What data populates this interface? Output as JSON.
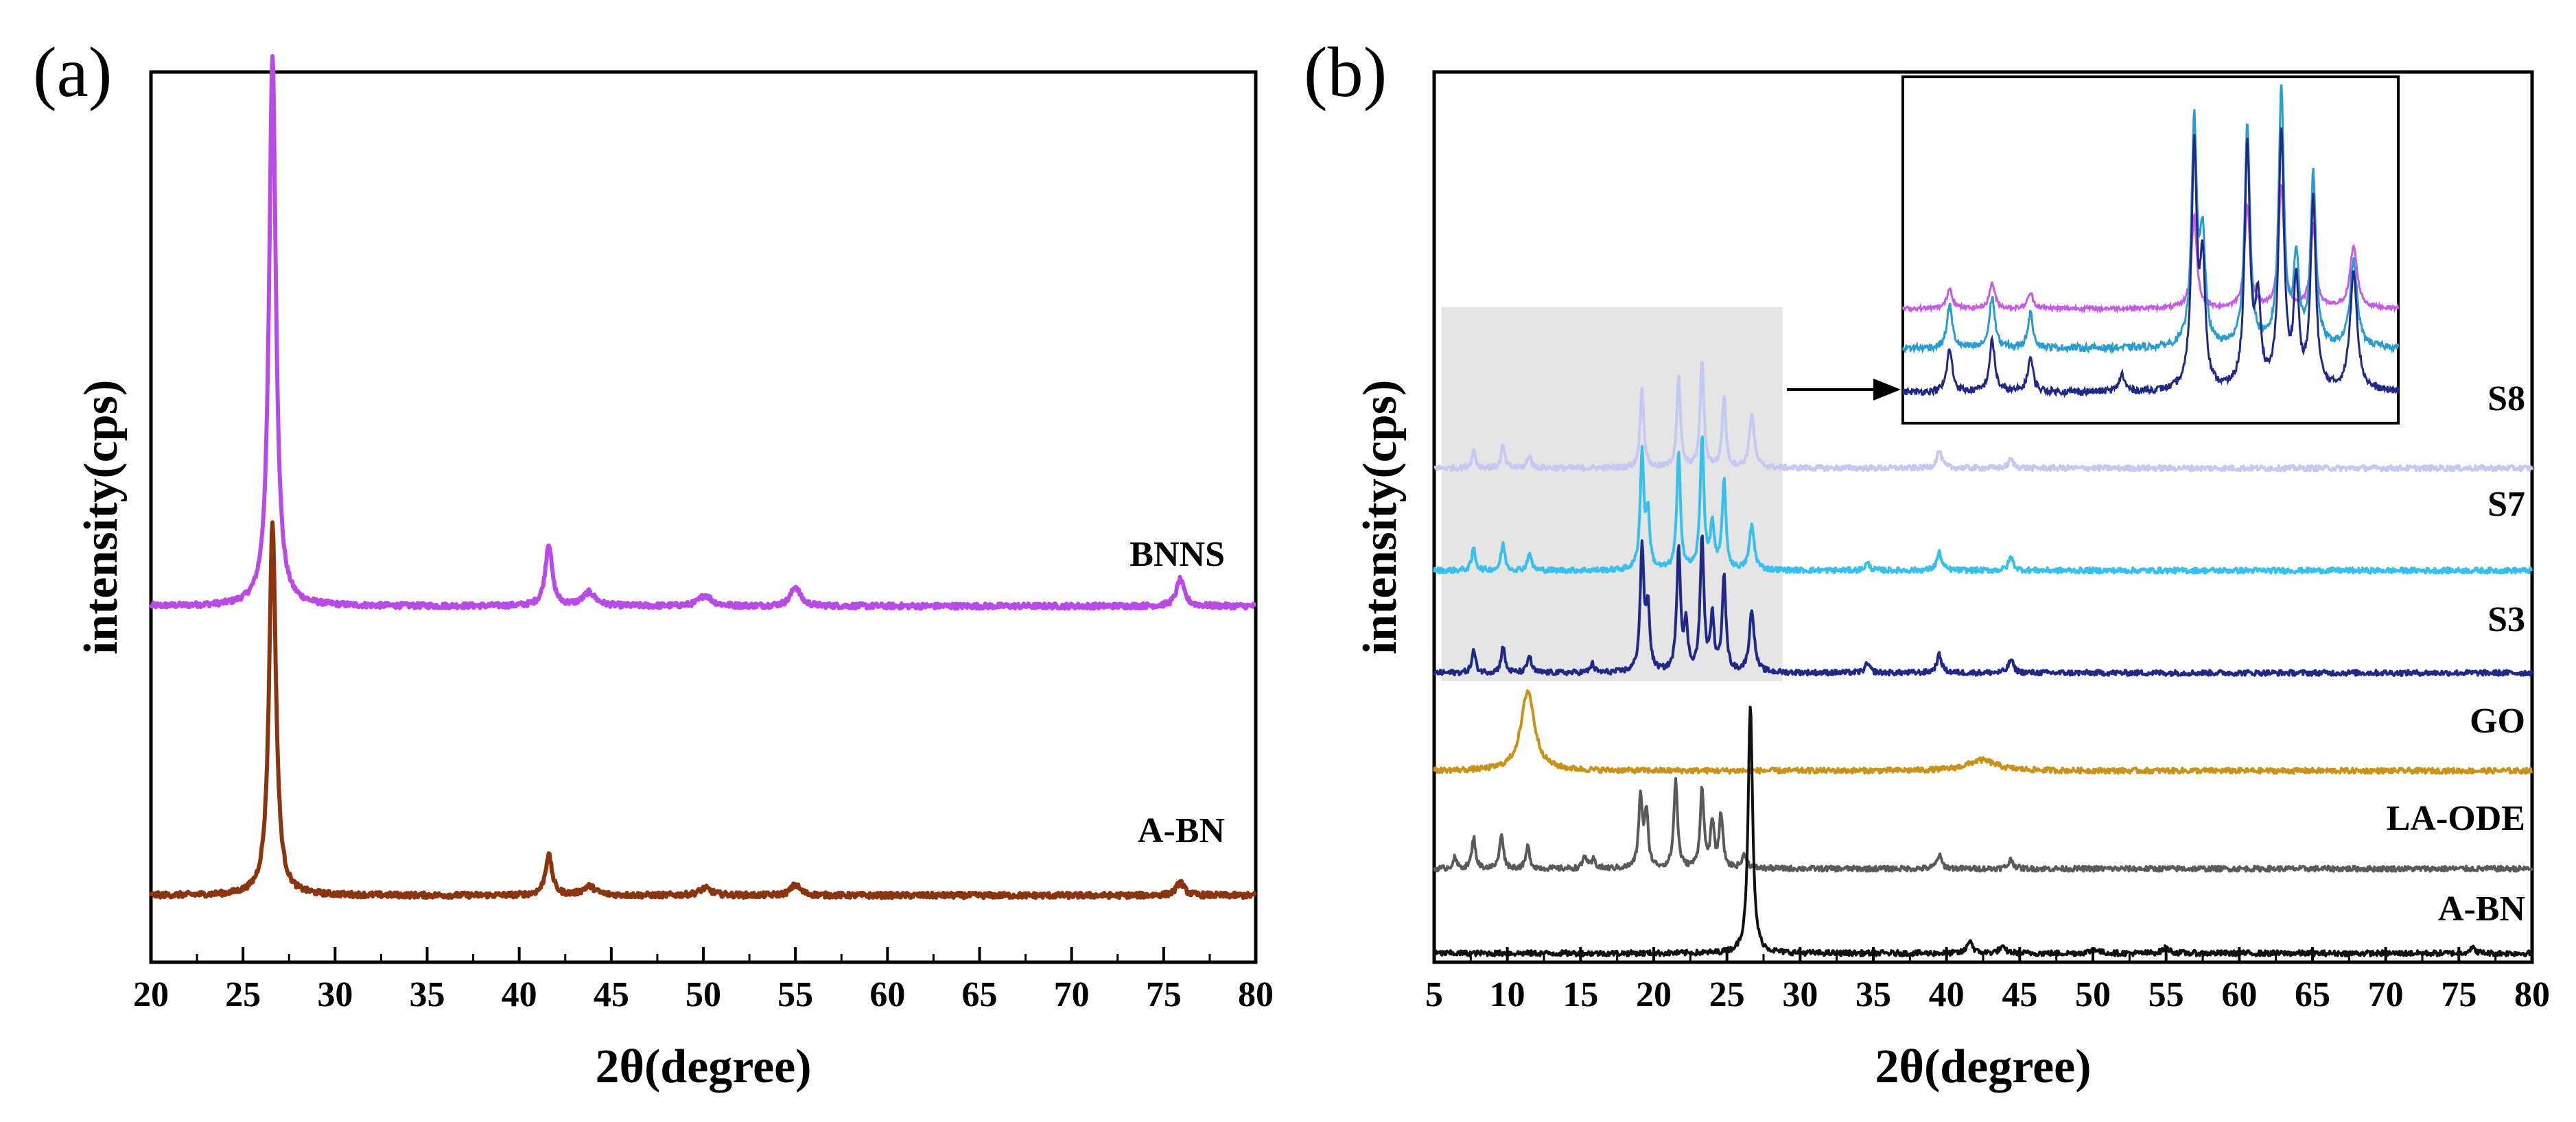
{
  "chart_data": [
    {
      "panel": "(a)",
      "type": "line",
      "xlabel": "2θ(degree)",
      "ylabel": "intensity(cps)",
      "xlim": [
        20,
        80
      ],
      "xticks": [
        20,
        25,
        30,
        35,
        40,
        45,
        50,
        55,
        60,
        65,
        70,
        75,
        80
      ],
      "yticks_shown": false,
      "series": [
        {
          "name": "BNNS",
          "color": "#b84ae8",
          "offset": 0.4,
          "baseline_noise": 0.006,
          "peaks": [
            [
              26.6,
              0.62,
              0.22
            ],
            [
              41.6,
              0.07,
              0.22
            ],
            [
              43.8,
              0.015,
              0.4
            ],
            [
              50.1,
              0.012,
              0.4
            ],
            [
              55.0,
              0.022,
              0.3
            ],
            [
              75.9,
              0.03,
              0.25
            ]
          ]
        },
        {
          "name": "A-BN",
          "color": "#8a3410",
          "offset": 0.075,
          "baseline_noise": 0.005,
          "peaks": [
            [
              26.6,
              0.42,
              0.22
            ],
            [
              41.6,
              0.045,
              0.22
            ],
            [
              43.8,
              0.01,
              0.4
            ],
            [
              50.1,
              0.008,
              0.4
            ],
            [
              55.0,
              0.012,
              0.3
            ],
            [
              75.9,
              0.015,
              0.25
            ]
          ]
        }
      ]
    },
    {
      "panel": "(b)",
      "type": "line",
      "xlabel": "2θ(degree)",
      "ylabel": "intensity(cps)",
      "xlim": [
        5,
        80
      ],
      "xticks": [
        5,
        10,
        15,
        20,
        25,
        30,
        35,
        40,
        45,
        50,
        55,
        60,
        65,
        70,
        75,
        80
      ],
      "yticks_shown": false,
      "highlight_range": [
        5.5,
        28.8
      ],
      "inset_note": "zoomed view of 5–28.8° region for S8, S7, S3",
      "series": [
        {
          "name": "S8",
          "color": "#c4c8f2",
          "offset": 0.555,
          "peaks": [
            [
              7.7,
              0.02,
              0.15
            ],
            [
              9.7,
              0.025,
              0.15
            ],
            [
              11.5,
              0.015,
              0.15
            ],
            [
              19.2,
              0.09,
              0.15
            ],
            [
              21.7,
              0.1,
              0.15
            ],
            [
              23.3,
              0.12,
              0.15
            ],
            [
              24.8,
              0.08,
              0.15
            ],
            [
              26.7,
              0.06,
              0.2
            ],
            [
              39.5,
              0.02,
              0.2
            ],
            [
              44.4,
              0.01,
              0.2
            ]
          ]
        },
        {
          "name": "S7",
          "color": "#38c0ec",
          "offset": 0.44,
          "peaks": [
            [
              7.7,
              0.025,
              0.15
            ],
            [
              9.7,
              0.03,
              0.15
            ],
            [
              11.5,
              0.02,
              0.15
            ],
            [
              19.2,
              0.13,
              0.15
            ],
            [
              19.6,
              0.06,
              0.15
            ],
            [
              21.7,
              0.13,
              0.15
            ],
            [
              23.3,
              0.15,
              0.15
            ],
            [
              24.0,
              0.05,
              0.15
            ],
            [
              24.8,
              0.1,
              0.15
            ],
            [
              26.7,
              0.05,
              0.2
            ],
            [
              34.6,
              0.008,
              0.2
            ],
            [
              39.5,
              0.02,
              0.2
            ],
            [
              44.4,
              0.015,
              0.2
            ]
          ]
        },
        {
          "name": "S3",
          "color": "#202a86",
          "offset": 0.325,
          "peaks": [
            [
              7.7,
              0.025,
              0.15
            ],
            [
              9.7,
              0.03,
              0.15
            ],
            [
              11.5,
              0.02,
              0.15
            ],
            [
              15.8,
              0.01,
              0.15
            ],
            [
              19.2,
              0.14,
              0.15
            ],
            [
              19.6,
              0.07,
              0.15
            ],
            [
              21.7,
              0.14,
              0.15
            ],
            [
              22.2,
              0.05,
              0.15
            ],
            [
              23.3,
              0.15,
              0.15
            ],
            [
              24.0,
              0.06,
              0.15
            ],
            [
              24.8,
              0.11,
              0.15
            ],
            [
              26.7,
              0.07,
              0.2
            ],
            [
              34.6,
              0.01,
              0.2
            ],
            [
              39.5,
              0.02,
              0.2
            ],
            [
              44.4,
              0.015,
              0.2
            ]
          ]
        },
        {
          "name": "GO",
          "color": "#c89318",
          "offset": 0.215,
          "peaks": [
            [
              11.4,
              0.09,
              0.55
            ],
            [
              42.4,
              0.012,
              1.2
            ]
          ]
        },
        {
          "name": "LA-ODE",
          "color": "#5a5a5a",
          "offset": 0.105,
          "peaks": [
            [
              6.4,
              0.012,
              0.15
            ],
            [
              7.7,
              0.035,
              0.15
            ],
            [
              9.6,
              0.04,
              0.15
            ],
            [
              11.4,
              0.025,
              0.15
            ],
            [
              15.3,
              0.015,
              0.15
            ],
            [
              15.9,
              0.01,
              0.15
            ],
            [
              19.1,
              0.08,
              0.15
            ],
            [
              19.5,
              0.06,
              0.15
            ],
            [
              21.5,
              0.1,
              0.15
            ],
            [
              23.3,
              0.09,
              0.15
            ],
            [
              24.0,
              0.05,
              0.15
            ],
            [
              24.6,
              0.06,
              0.15
            ],
            [
              26.2,
              0.015,
              0.2
            ],
            [
              39.5,
              0.015,
              0.2
            ],
            [
              44.4,
              0.01,
              0.2
            ]
          ]
        },
        {
          "name": "A-BN",
          "color": "#111111",
          "offset": 0.01,
          "peaks": [
            [
              26.6,
              0.28,
              0.18
            ],
            [
              41.6,
              0.015,
              0.2
            ],
            [
              43.8,
              0.006,
              0.3
            ],
            [
              50.1,
              0.005,
              0.3
            ],
            [
              55.0,
              0.006,
              0.3
            ],
            [
              75.9,
              0.006,
              0.25
            ]
          ]
        }
      ]
    }
  ]
}
